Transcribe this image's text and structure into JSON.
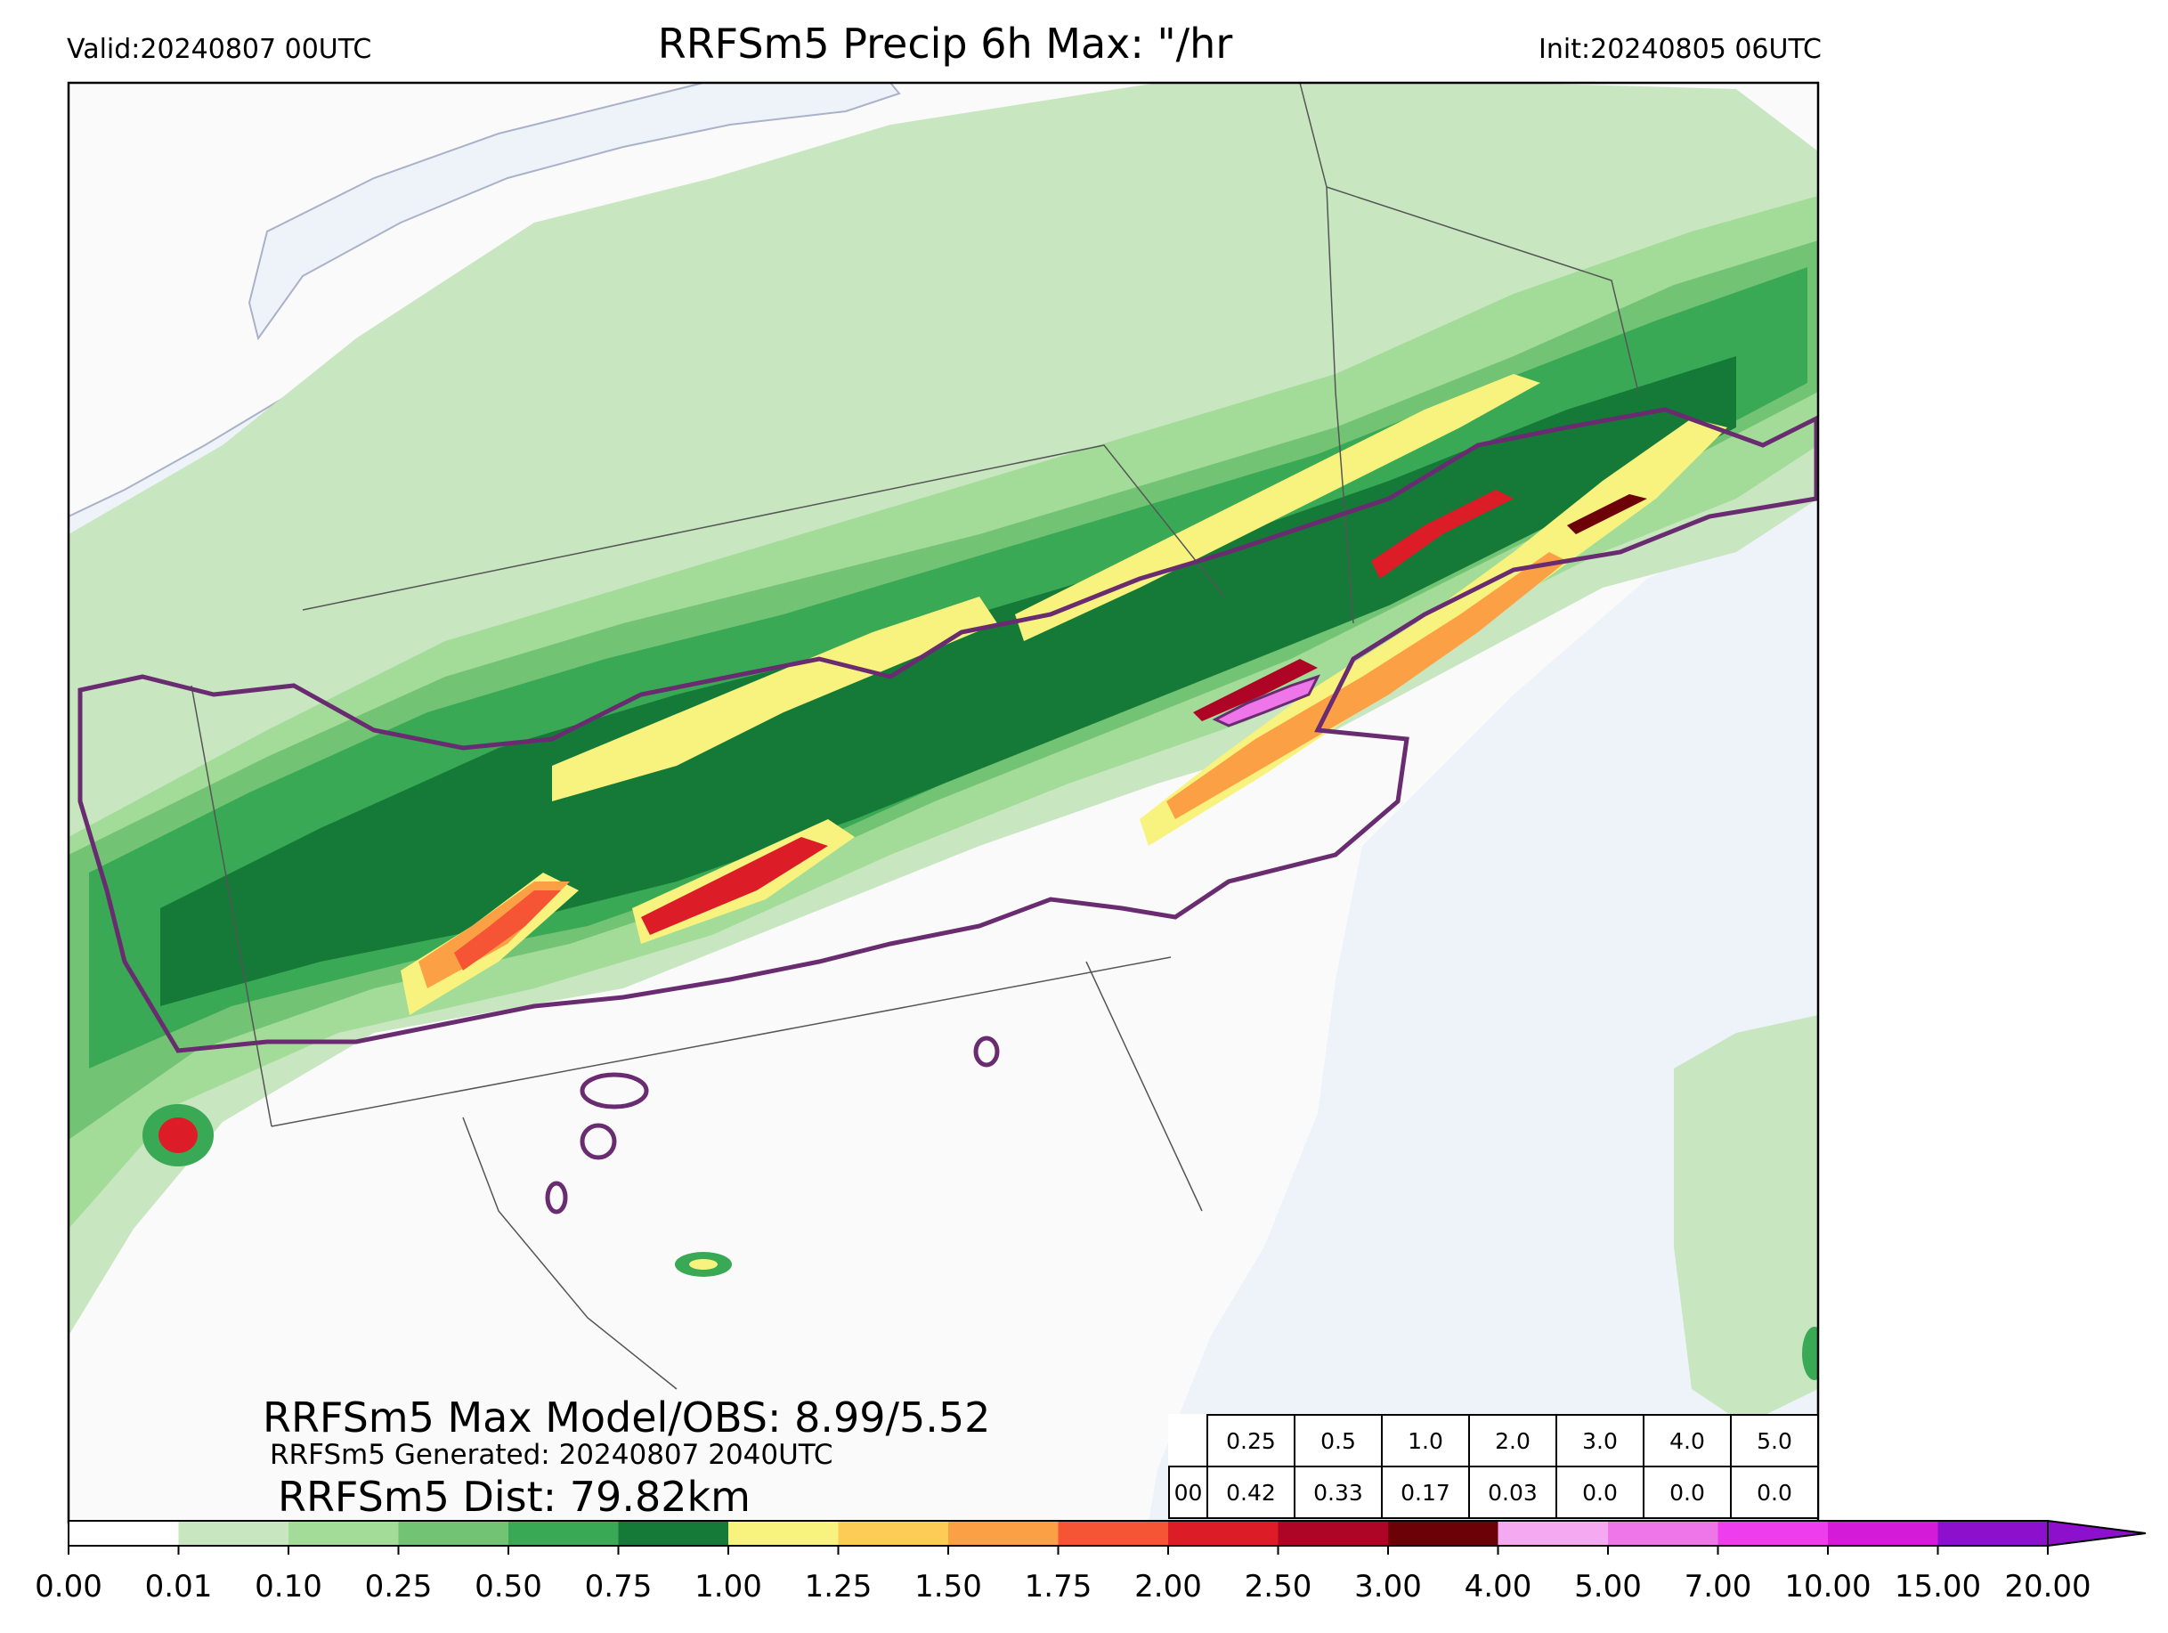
{
  "header": {
    "valid": "Valid:20240807 00UTC",
    "title": "RRFSm5 Precip 6h Max: \"/hr",
    "init": "Init:20240805 06UTC"
  },
  "colors": {
    "water": "#eef3fa",
    "land": "#fafafa",
    "obs_contour": "#6a2c70",
    "boundary": "#555555"
  },
  "stats": {
    "max": "RRFSm5 Max Model/OBS: 8.99/5.52",
    "generated": "RRFSm5 Generated: 20240807 2040UTC",
    "dist": "RRFSm5 Dist: 79.82km"
  },
  "threshold_table": {
    "thresholds": [
      "0.25",
      "0.5",
      "1.0",
      "2.0",
      "3.0",
      "4.0",
      "5.0"
    ],
    "row_label": "00",
    "values": [
      "0.42",
      "0.33",
      "0.17",
      "0.03",
      "0.0",
      "0.0",
      "0.0"
    ]
  },
  "colorbar": {
    "ticks": [
      "0.00",
      "0.01",
      "0.10",
      "0.25",
      "0.50",
      "0.75",
      "1.00",
      "1.25",
      "1.50",
      "1.75",
      "2.00",
      "2.50",
      "3.00",
      "4.00",
      "5.00",
      "7.00",
      "10.00",
      "15.00",
      "20.00"
    ],
    "colors": [
      "#ffffff",
      "#c8e6c0",
      "#a3dc98",
      "#73c374",
      "#3aa955",
      "#157a38",
      "#f8f37e",
      "#fdcc56",
      "#fca046",
      "#f65535",
      "#dc1d28",
      "#ae0426",
      "#6c0207",
      "#f5a9f0",
      "#ee76e9",
      "#ee3ded",
      "#d31bd8",
      "#8c10cc"
    ]
  }
}
